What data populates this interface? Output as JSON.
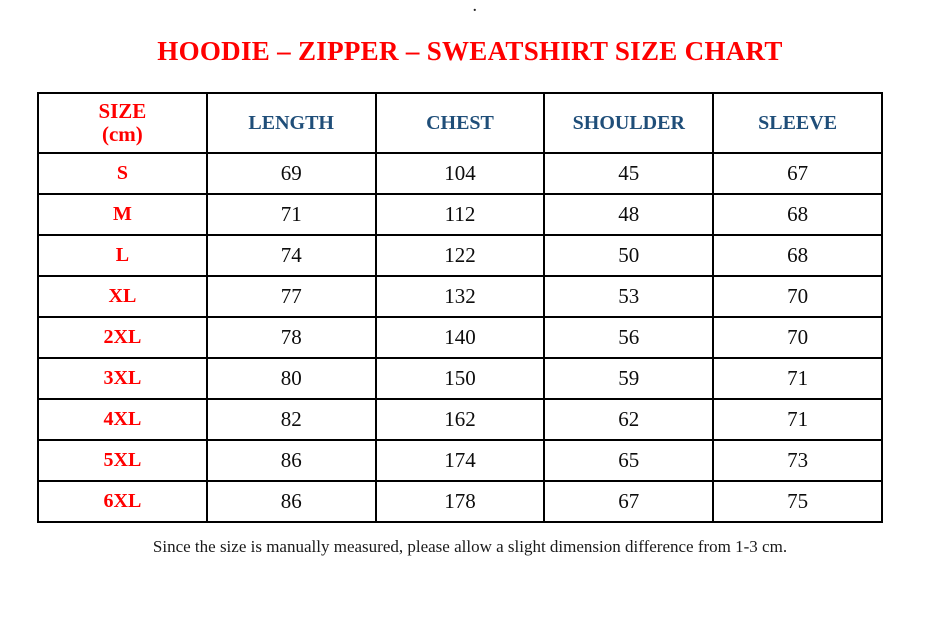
{
  "page": {
    "stray_dot": "."
  },
  "title": "HOODIE – ZIPPER – SWEATSHIRT SIZE CHART",
  "table": {
    "header": {
      "size_label_line1": "SIZE",
      "size_label_line2": "(cm)",
      "columns": [
        "LENGTH",
        "CHEST",
        "SHOULDER",
        "SLEEVE"
      ]
    },
    "rows": [
      {
        "size": "S",
        "length": "69",
        "chest": "104",
        "shoulder": "45",
        "sleeve": "67"
      },
      {
        "size": "M",
        "length": "71",
        "chest": "112",
        "shoulder": "48",
        "sleeve": "68"
      },
      {
        "size": "L",
        "length": "74",
        "chest": "122",
        "shoulder": "50",
        "sleeve": "68"
      },
      {
        "size": "XL",
        "length": "77",
        "chest": "132",
        "shoulder": "53",
        "sleeve": "70"
      },
      {
        "size": "2XL",
        "length": "78",
        "chest": "140",
        "shoulder": "56",
        "sleeve": "70"
      },
      {
        "size": "3XL",
        "length": "80",
        "chest": "150",
        "shoulder": "59",
        "sleeve": "71"
      },
      {
        "size": "4XL",
        "length": "82",
        "chest": "162",
        "shoulder": "62",
        "sleeve": "71"
      },
      {
        "size": "5XL",
        "length": "86",
        "chest": "174",
        "shoulder": "65",
        "sleeve": "73"
      },
      {
        "size": "6XL",
        "length": "86",
        "chest": "178",
        "shoulder": "67",
        "sleeve": "75"
      }
    ]
  },
  "footer": {
    "note": "Since the size is manually measured, please allow a slight dimension difference from 1-3 cm."
  },
  "colors": {
    "accent_red": "#FF0000",
    "header_blue": "#1F4E79",
    "text_black": "#0D0D0D",
    "border_black": "#000000"
  }
}
